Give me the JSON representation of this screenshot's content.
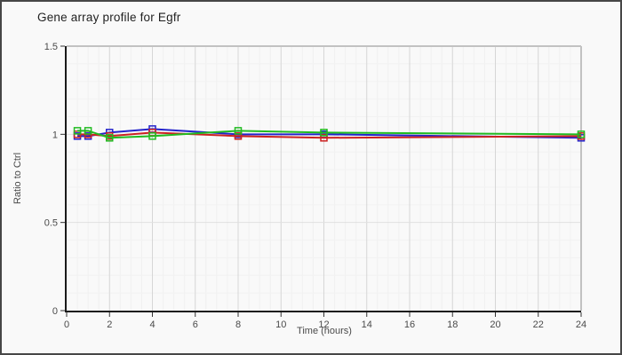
{
  "chart_data": {
    "type": "line",
    "title": "Gene array profile for Egfr",
    "xlabel": "Time (hours)",
    "ylabel": "Ratio to Ctrl",
    "xlim": [
      0,
      24
    ],
    "ylim": [
      0,
      1.5
    ],
    "x_major_ticks": [
      0,
      2,
      4,
      6,
      8,
      10,
      12,
      14,
      16,
      18,
      20,
      22,
      24
    ],
    "x_minor_step": 0.5,
    "y_major_ticks": [
      0,
      0.5,
      1,
      1.5
    ],
    "y_tick_labels": [
      "0",
      "0.5",
      "1",
      "1.5"
    ],
    "y_minor_step": 0.1,
    "grid": true,
    "legend_position": "none",
    "marker": "hollow-square",
    "x": [
      0.5,
      1,
      2,
      4,
      8,
      12,
      24
    ],
    "series": [
      {
        "name": "blue",
        "color": "#2323cc",
        "values": [
          0.99,
          0.99,
          1.01,
          1.03,
          1.0,
          1.0,
          0.98
        ]
      },
      {
        "name": "red",
        "color": "#cc2222",
        "values": [
          1.0,
          1.0,
          0.99,
          1.01,
          0.99,
          0.98,
          0.99
        ]
      },
      {
        "name": "green",
        "color": "#21bb21",
        "values": [
          1.02,
          1.02,
          0.98,
          0.99,
          1.02,
          1.01,
          1.0
        ]
      }
    ]
  }
}
